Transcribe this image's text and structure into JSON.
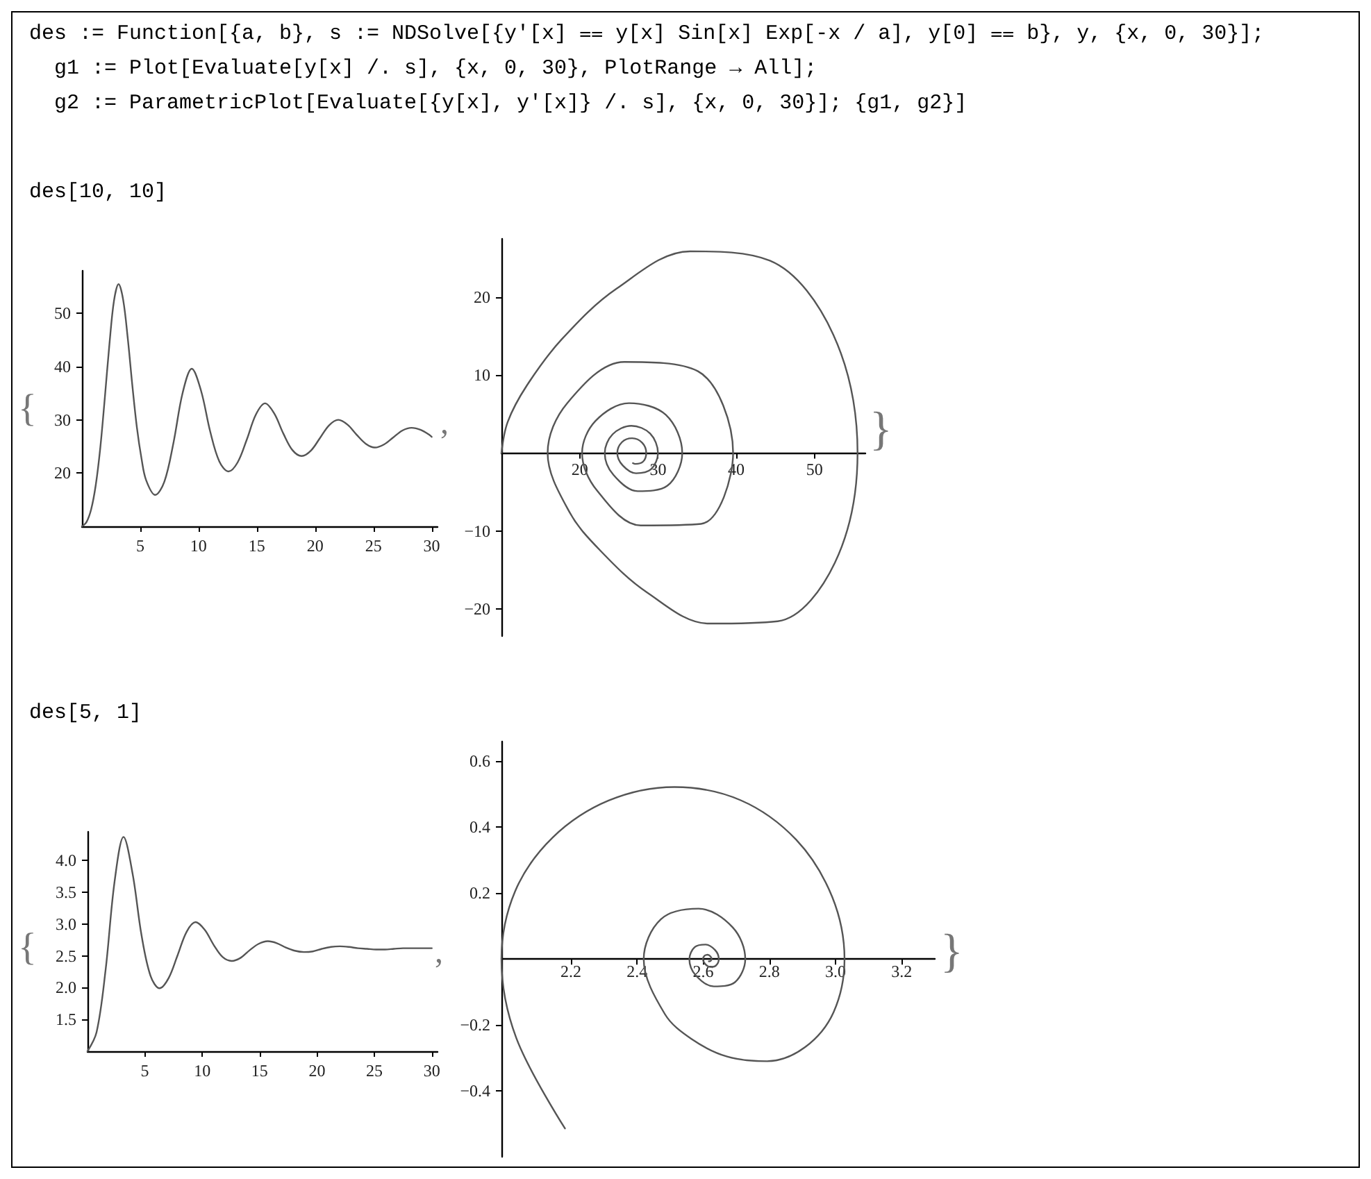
{
  "chart_data": [
    {
      "type": "line",
      "annotations": [
        "des := Function[{a, b}, s := NDSolve[{y′[x] ⩵ y[x] Sin[x] Exp[-x / a], y[0] ⩵ b}, y, {x, 0, 30}];",
        "g1 := Plot[Evaluate[y[x] /. s], {x, 0, 30}, PlotRange → All];",
        "g2 := ParametricPlot[Evaluate[{y[x], y′[x]} /. s], {x, 0, 30}]; {g1, g2}]",
        "des[10, 10]",
        "{",
        ","
      ],
      "series": [
        {
          "color": "#555555",
          "x": [
            0,
            0.39,
            0.79,
            1.18,
            1.57,
            1.96,
            2.36,
            2.75,
            3.14,
            3.53,
            3.93,
            4.32,
            4.71,
            5.11,
            5.5,
            6.28,
            7.07,
            7.85,
            8.64,
            9.42,
            10.21,
            11,
            11.78,
            12.57,
            13.35,
            14.14,
            14.92,
            15.71,
            16.49,
            17.28,
            18.06,
            18.85,
            19.63,
            20.42,
            21.21,
            21.99,
            22.78,
            23.56,
            24.35,
            25.13,
            25.92,
            26.7,
            27.49,
            28.27,
            29.06,
            29.85,
            30
          ],
          "values": [
            10,
            10.8,
            13.2,
            17.7,
            24.7,
            34.1,
            44.3,
            52.4,
            55.5,
            52.6,
            45.3,
            36.5,
            28.6,
            22.7,
            18.7,
            15.9,
            18.4,
            25.7,
            35.1,
            39.6,
            35.5,
            27.8,
            22.2,
            20.3,
            22,
            26.3,
            31,
            33.1,
            31.2,
            27.4,
            24.3,
            23.2,
            24.2,
            26.6,
            29,
            30,
            29.1,
            27.2,
            25.5,
            24.8,
            25.4,
            26.7,
            28,
            28.5,
            28.1,
            27.1,
            26.8
          ]
        }
      ],
      "xlim": [
        0,
        30.5
      ],
      "ylim": [
        10,
        58
      ],
      "xticks": [
        5,
        10,
        15,
        20,
        25,
        30
      ],
      "yticks": [
        20,
        30,
        40,
        50
      ],
      "grid": false,
      "marker": "none",
      "line_style": "solid"
    },
    {
      "type": "line",
      "annotations": [
        "}"
      ],
      "series": [
        {
          "color": "#555555",
          "x": [
            10,
            10.8,
            13.2,
            17.7,
            24.7,
            34.1,
            44.3,
            52.4,
            55.5,
            52.6,
            45.3,
            36.5,
            28.6,
            22.7,
            18.7,
            15.9,
            18.4,
            25.7,
            35.1,
            39.6,
            35.5,
            27.8,
            22.2,
            20.3,
            22,
            26.3,
            31,
            33.1,
            31.2,
            27.4,
            24.3,
            23.2,
            24.2,
            26.6,
            29,
            30,
            29.1,
            27.2,
            25.5,
            24.8,
            25.4,
            26.7,
            28,
            28.5,
            28.1,
            27.1,
            26.8
          ],
          "values": [
            0,
            4,
            8.6,
            14.6,
            21.1,
            25.9,
            24.7,
            15.2,
            0,
            -14.1,
            -21.6,
            -21.9,
            -17.9,
            -12.6,
            -7.6,
            0,
            6.4,
            11.7,
            10.5,
            0,
            -9.1,
            -9.3,
            -4.8,
            0,
            4.1,
            6.4,
            4.9,
            0,
            -4.2,
            -4.9,
            -2.8,
            0,
            2.4,
            3.5,
            2.5,
            0,
            -2.1,
            -2.6,
            -1.6,
            0,
            1.4,
            1.9,
            1.3,
            0,
            -1.1,
            -1.4,
            -1.3
          ]
        }
      ],
      "xlim": [
        10,
        56.5
      ],
      "ylim": [
        -23.5,
        27.5
      ],
      "xticks": [
        20,
        30,
        40,
        50
      ],
      "yticks": [
        {
          "value": -20,
          "label": "−20"
        },
        {
          "value": -10,
          "label": "−10"
        },
        10,
        20
      ],
      "grid": false,
      "marker": "none",
      "line_style": "solid"
    },
    {
      "type": "line",
      "annotations": [
        "des[5, 1]",
        "{",
        ","
      ],
      "series": [
        {
          "color": "#555555",
          "x": [
            0,
            0.79,
            1.57,
            2.36,
            3.14,
            3.93,
            4.71,
            5.5,
            6.28,
            7.07,
            7.85,
            8.64,
            9.42,
            10.21,
            11,
            11.78,
            12.57,
            13.35,
            14.14,
            14.92,
            15.71,
            16.49,
            17.28,
            18.06,
            18.85,
            19.63,
            20.42,
            21.21,
            21.99,
            22.78,
            23.56,
            24.35,
            25.13,
            25.92,
            26.7,
            27.49,
            28.27,
            29.06,
            29.85,
            30
          ],
          "values": [
            1,
            1.3,
            2.27,
            3.67,
            4.37,
            3.79,
            2.82,
            2.18,
            1.99,
            2.15,
            2.51,
            2.88,
            3.03,
            2.91,
            2.67,
            2.48,
            2.42,
            2.47,
            2.59,
            2.69,
            2.73,
            2.7,
            2.63,
            2.58,
            2.56,
            2.57,
            2.61,
            2.64,
            2.65,
            2.64,
            2.62,
            2.61,
            2.6,
            2.6,
            2.61,
            2.62,
            2.62,
            2.62,
            2.62,
            2.62
          ]
        }
      ],
      "xlim": [
        0,
        30.5
      ],
      "ylim": [
        1,
        4.45
      ],
      "xticks": [
        5,
        10,
        15,
        20,
        25,
        30
      ],
      "yticks": [
        1.5,
        {
          "value": 2,
          "label": "2.0"
        },
        2.5,
        {
          "value": 3,
          "label": "3.0"
        },
        3.5,
        {
          "value": 4,
          "label": "4.0"
        }
      ],
      "grid": false,
      "marker": "none",
      "line_style": "solid"
    },
    {
      "type": "line",
      "annotations": [
        "}"
      ],
      "series": [
        {
          "color": "#555555",
          "x": [
            2.182,
            2.035,
            1.99,
            2.031,
            2.145,
            2.314,
            2.513,
            2.713,
            2.881,
            2.99,
            3.027,
            2.994,
            2.908,
            2.793,
            2.672,
            2.565,
            2.484,
            2.42,
            2.472,
            2.586,
            2.689,
            2.727,
            2.696,
            2.632,
            2.577,
            2.558,
            2.574,
            2.607,
            2.636,
            2.647,
            2.638,
            2.62,
            2.605,
            2.599,
            2.604,
            2.613,
            2.622,
            2.625,
            2.622,
            2.617,
            2.616
          ],
          "values": [
            -0.514,
            -0.24,
            0,
            0.205,
            0.369,
            0.481,
            0.522,
            0.482,
            0.362,
            0.188,
            0,
            -0.161,
            -0.267,
            -0.31,
            -0.296,
            -0.243,
            -0.167,
            0,
            0.121,
            0.153,
            0.096,
            0,
            -0.07,
            -0.083,
            -0.049,
            0,
            0.036,
            0.044,
            0.027,
            0,
            -0.02,
            -0.024,
            -0.014,
            0,
            0.01,
            0.013,
            0.008,
            0,
            -0.006,
            -0.007,
            -0.006
          ]
        }
      ],
      "xlim": [
        1.99,
        3.3
      ],
      "ylim": [
        -0.6,
        0.66
      ],
      "xticks": [
        2.2,
        2.4,
        2.6,
        2.8,
        {
          "value": 3,
          "label": "3.0"
        },
        3.2
      ],
      "yticks": [
        {
          "value": -0.4,
          "label": "−0.4"
        },
        {
          "value": -0.2,
          "label": "−0.2"
        },
        0.2,
        0.4,
        0.6
      ],
      "grid": false,
      "marker": "none",
      "line_style": "solid"
    }
  ]
}
